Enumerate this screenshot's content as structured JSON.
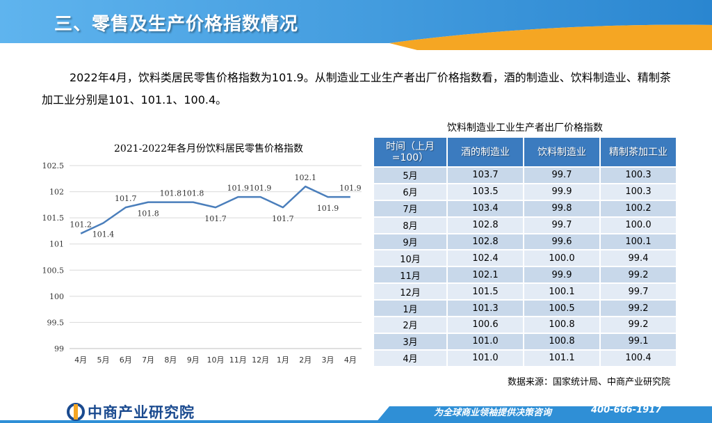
{
  "header": {
    "title": "三、零售及生产价格指数情况"
  },
  "intro": {
    "text": "2022年4月，饮料类居民零售价格指数为101.9。从制造业工业生产者出厂价格指数看，酒的制造业、饮料制造业、精制茶加工业分别是101、101.1、100.4。"
  },
  "chart_data": {
    "type": "line",
    "title": "2021-2022年各月份饮料居民零售价格指数",
    "categories": [
      "4月",
      "5月",
      "6月",
      "7月",
      "8月",
      "9月",
      "10月",
      "11月",
      "12月",
      "1月",
      "2月",
      "3月",
      "4月"
    ],
    "values": [
      101.2,
      101.4,
      101.7,
      101.8,
      101.8,
      101.8,
      101.7,
      101.9,
      101.9,
      101.7,
      102.1,
      101.9,
      101.9
    ],
    "data_labels": [
      "101.2",
      "101.4",
      "101.7",
      "101.8",
      "101.8",
      "101.8",
      "101.7",
      "101.9",
      "101.9",
      "101.7",
      "102.1",
      "101.9",
      "101.9"
    ],
    "yticks": [
      "99",
      "99.5",
      "100",
      "100.5",
      "101",
      "101.5",
      "102",
      "102.5"
    ],
    "ylim": [
      99,
      102.5
    ],
    "grid": true,
    "line_color": "#4a7ebb"
  },
  "table": {
    "title": "饮料制造业工业生产者出厂价格指数",
    "headers": [
      "时间（上月=100）",
      "酒的制造业",
      "饮料制造业",
      "精制茶加工业"
    ],
    "rows": [
      [
        "5月",
        "103.7",
        "99.7",
        "100.3"
      ],
      [
        "6月",
        "103.5",
        "99.9",
        "100.3"
      ],
      [
        "7月",
        "103.4",
        "99.8",
        "100.2"
      ],
      [
        "8月",
        "102.8",
        "99.7",
        "100.0"
      ],
      [
        "9月",
        "102.8",
        "99.6",
        "100.1"
      ],
      [
        "10月",
        "102.4",
        "100.0",
        "99.4"
      ],
      [
        "11月",
        "102.1",
        "99.9",
        "99.2"
      ],
      [
        "12月",
        "101.5",
        "100.1",
        "99.7"
      ],
      [
        "1月",
        "101.3",
        "100.5",
        "99.2"
      ],
      [
        "2月",
        "100.6",
        "100.8",
        "99.2"
      ],
      [
        "3月",
        "101.0",
        "100.8",
        "99.1"
      ],
      [
        "4月",
        "101.0",
        "101.1",
        "100.4"
      ]
    ]
  },
  "source": "数据来源：国家统计局、中商产业研究院",
  "footer": {
    "logo_text": "中商产业研究院",
    "slogan": "为全球商业领袖提供决策咨询",
    "phone": "400-666-1917"
  },
  "colors": {
    "header_blue": "#2f8fd6",
    "header_orange": "#f5a623",
    "table_header": "#3b7bbf",
    "footer_blue": "#2f8fd6"
  }
}
